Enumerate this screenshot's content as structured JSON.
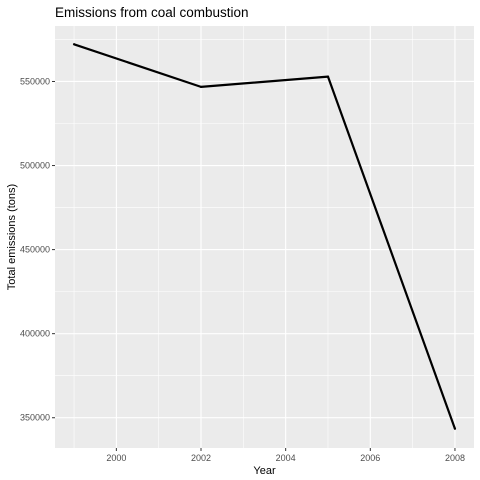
{
  "chart_data": {
    "type": "line",
    "title": "Emissions from coal combustion",
    "xlabel": "Year",
    "ylabel": "Total emissions (tons)",
    "x": [
      1999,
      2002,
      2005,
      2008
    ],
    "series": [
      {
        "values": [
          572126,
          546789,
          552881,
          343432
        ]
      }
    ],
    "xlim": [
      1998.55,
      2008.45
    ],
    "ylim": [
      332000,
      583000
    ],
    "x_ticks": [
      2000,
      2002,
      2004,
      2006,
      2008
    ],
    "x_tick_labels": [
      "2000",
      "2002",
      "2004",
      "2006",
      "2008"
    ],
    "y_ticks": [
      350000,
      400000,
      450000,
      500000,
      550000
    ],
    "y_tick_labels": [
      "350000",
      "400000",
      "450000",
      "500000",
      "550000"
    ],
    "grid": true,
    "legend": "none",
    "colors": {
      "panel": "#ebebeb",
      "grid": "#ffffff",
      "line": "#000000",
      "tick_text": "#4d4d4d"
    }
  }
}
